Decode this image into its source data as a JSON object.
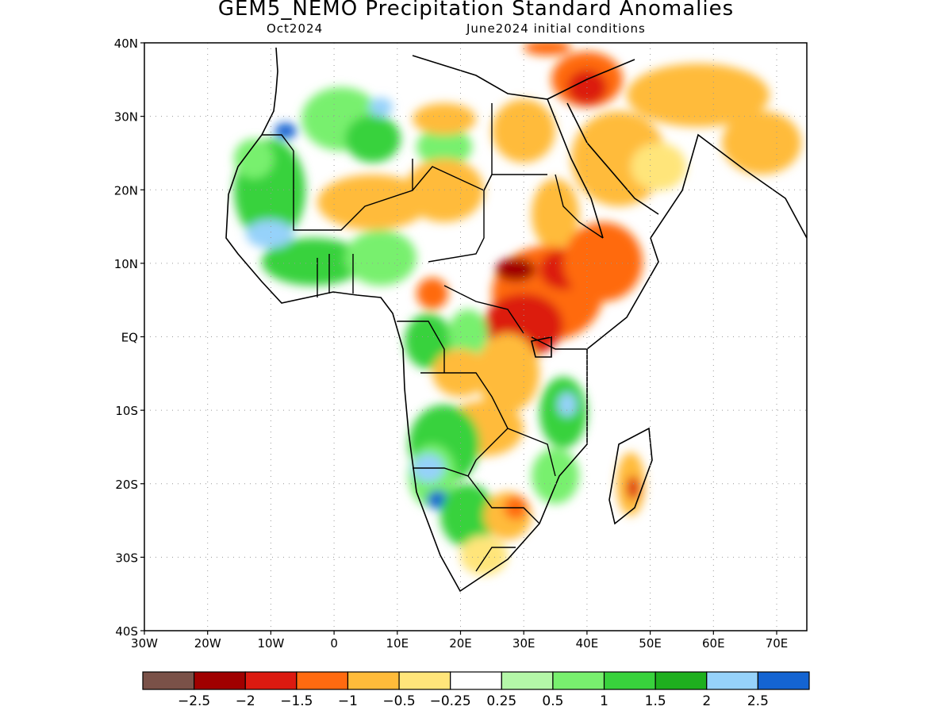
{
  "title": "GEM5_NEMO Precipitation Standard Anomalies",
  "subtitle_left": "Oct2024",
  "subtitle_right": "June2024 initial conditions",
  "map": {
    "region": "Africa",
    "lat_labels": [
      "40N",
      "30N",
      "20N",
      "10N",
      "EQ",
      "10S",
      "20S",
      "30S",
      "40S"
    ],
    "lon_labels": [
      "30W",
      "20W",
      "10W",
      "0",
      "10E",
      "20E",
      "30E",
      "40E",
      "50E",
      "60E",
      "70E"
    ],
    "grid": "dotted"
  },
  "colorbar": {
    "colors": [
      "#7a5148",
      "#a00000",
      "#dc1a10",
      "#ff6a10",
      "#ffbb3a",
      "#ffe57a",
      "#ffffff",
      "#b4f7a8",
      "#78f06e",
      "#38d23c",
      "#1eaf1e",
      "#96d2fa",
      "#1464d2"
    ],
    "labels": [
      "−2.5",
      "−2",
      "−1.5",
      "−1",
      "−0.5",
      "−0.25",
      "0.25",
      "0.5",
      "1",
      "1.5",
      "2",
      "2.5"
    ]
  }
}
